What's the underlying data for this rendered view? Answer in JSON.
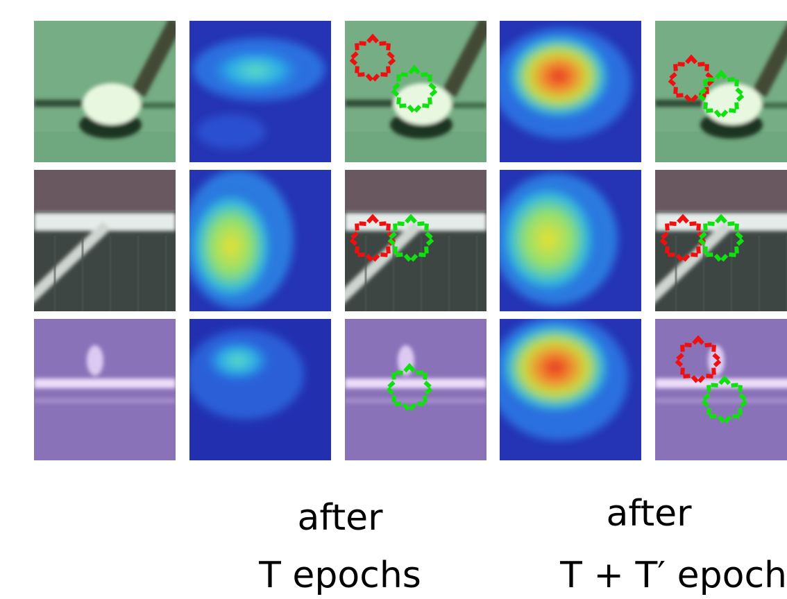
{
  "captions": [
    {
      "line1": "after",
      "line2": "T epochs"
    },
    {
      "line1": "after",
      "line2": "T + T′ epoch"
    }
  ]
}
